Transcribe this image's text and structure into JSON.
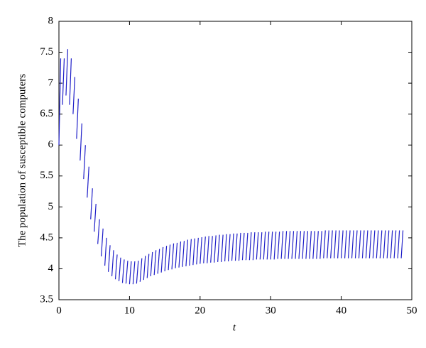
{
  "chart_data": {
    "type": "impulse-segments",
    "xlabel": "t",
    "ylabel": "The population of susceptible computers",
    "color": "#1f1fc8",
    "xlim": [
      0,
      50
    ],
    "xticks": [
      0,
      10,
      20,
      30,
      40,
      50
    ],
    "ylim": [
      3.5,
      8
    ],
    "yticks": [
      3.5,
      4,
      4.5,
      5,
      5.5,
      6,
      6.5,
      7,
      7.5,
      8
    ],
    "t": [
      0,
      0.5,
      1,
      1.5,
      2,
      2.5,
      3,
      3.5,
      4,
      4.5,
      5,
      5.5,
      6,
      6.5,
      7,
      7.5,
      8,
      8.5,
      9,
      9.5,
      10,
      10.5,
      11,
      11.5,
      12,
      12.5,
      13,
      13.5,
      14,
      14.5,
      15,
      15.5,
      16,
      16.5,
      17,
      17.5,
      18,
      18.5,
      19,
      19.5,
      20,
      20.5,
      21,
      21.5,
      22,
      22.5,
      23,
      23.5,
      24,
      24.5,
      25,
      25.5,
      26,
      26.5,
      27,
      27.5,
      28,
      28.5,
      29,
      29.5,
      30,
      30.5,
      31,
      31.5,
      32,
      32.5,
      33,
      33.5,
      34,
      34.5,
      35,
      35.5,
      36,
      36.5,
      37,
      37.5,
      38,
      38.5,
      39,
      39.5,
      40,
      40.5,
      41,
      41.5,
      42,
      42.5,
      43,
      43.5,
      44,
      44.5,
      45,
      45.5,
      46,
      46.5,
      47,
      47.5,
      48,
      48.5
    ],
    "low": [
      6.0,
      6.65,
      6.8,
      6.65,
      6.5,
      6.1,
      5.75,
      5.45,
      5.15,
      4.8,
      4.6,
      4.4,
      4.2,
      4.05,
      3.95,
      3.88,
      3.83,
      3.8,
      3.77,
      3.76,
      3.75,
      3.75,
      3.76,
      3.79,
      3.82,
      3.85,
      3.88,
      3.9,
      3.92,
      3.94,
      3.96,
      3.98,
      3.99,
      4.01,
      4.02,
      4.03,
      4.04,
      4.05,
      4.06,
      4.07,
      4.08,
      4.09,
      4.09,
      4.1,
      4.1,
      4.11,
      4.11,
      4.12,
      4.12,
      4.13,
      4.13,
      4.13,
      4.14,
      4.14,
      4.14,
      4.14,
      4.15,
      4.15,
      4.15,
      4.15,
      4.15,
      4.15,
      4.16,
      4.16,
      4.16,
      4.16,
      4.16,
      4.16,
      4.16,
      4.16,
      4.16,
      4.16,
      4.16,
      4.16,
      4.16,
      4.17,
      4.17,
      4.17,
      4.17,
      4.17,
      4.17,
      4.17,
      4.17,
      4.17,
      4.17,
      4.17,
      4.17,
      4.17,
      4.17,
      4.17,
      4.17,
      4.17,
      4.17,
      4.17,
      4.17,
      4.17,
      4.17,
      4.17
    ],
    "high": [
      7.4,
      7.4,
      7.55,
      7.4,
      7.1,
      6.75,
      6.35,
      6.0,
      5.65,
      5.3,
      5.05,
      4.8,
      4.65,
      4.5,
      4.38,
      4.3,
      4.23,
      4.18,
      4.15,
      4.13,
      4.12,
      4.12,
      4.13,
      4.17,
      4.21,
      4.24,
      4.27,
      4.3,
      4.32,
      4.35,
      4.37,
      4.39,
      4.41,
      4.42,
      4.44,
      4.45,
      4.47,
      4.48,
      4.49,
      4.5,
      4.51,
      4.52,
      4.53,
      4.53,
      4.54,
      4.55,
      4.55,
      4.56,
      4.56,
      4.57,
      4.57,
      4.58,
      4.58,
      4.58,
      4.59,
      4.59,
      4.59,
      4.59,
      4.6,
      4.6,
      4.6,
      4.6,
      4.6,
      4.61,
      4.61,
      4.61,
      4.61,
      4.61,
      4.61,
      4.61,
      4.61,
      4.61,
      4.61,
      4.61,
      4.61,
      4.62,
      4.62,
      4.62,
      4.62,
      4.62,
      4.62,
      4.62,
      4.62,
      4.62,
      4.62,
      4.62,
      4.62,
      4.62,
      4.62,
      4.62,
      4.62,
      4.62,
      4.62,
      4.62,
      4.62,
      4.62,
      4.62,
      4.62
    ]
  }
}
